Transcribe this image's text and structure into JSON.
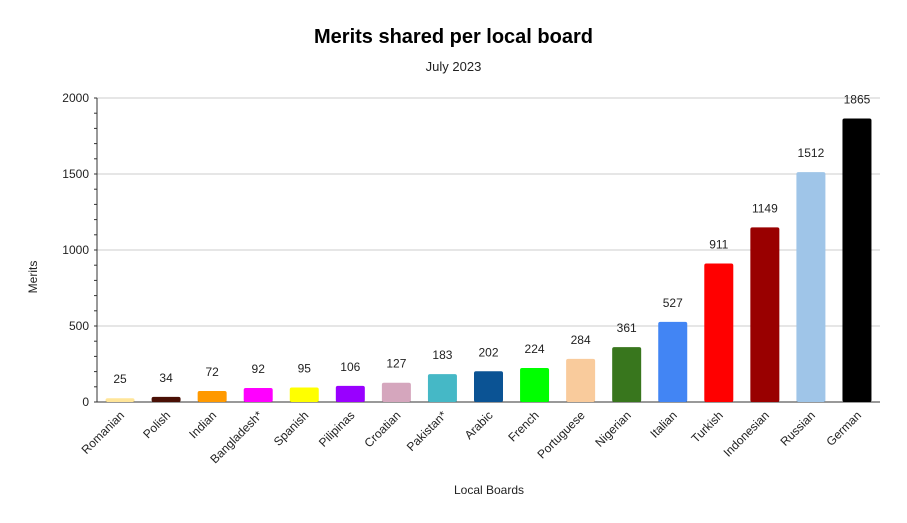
{
  "chart_data": {
    "type": "bar",
    "title": "Merits shared per local board",
    "subtitle": "July 2023",
    "xlabel": "Local Boards",
    "ylabel": "Merits",
    "ylim": [
      0,
      2000
    ],
    "yticks": [
      0,
      500,
      1000,
      1500,
      2000
    ],
    "grid": true,
    "categories": [
      "Romanian",
      "Polish",
      "Indian",
      "Bangladesh*",
      "Spanish",
      "Pilipinas",
      "Croatian",
      "Pakistan*",
      "Arabic",
      "French",
      "Portuguese",
      "Nigerian",
      "Italian",
      "Turkish",
      "Indonesian",
      "Russian",
      "German"
    ],
    "values": [
      25,
      34,
      72,
      92,
      95,
      106,
      127,
      183,
      202,
      224,
      284,
      361,
      527,
      911,
      1149,
      1512,
      1865
    ],
    "colors": [
      "#ffe599",
      "#4a1005",
      "#ff9900",
      "#ff00ff",
      "#ffff00",
      "#9900ff",
      "#d5a6bd",
      "#45b8c6",
      "#0b5394",
      "#00ff00",
      "#f9cb9c",
      "#38761d",
      "#4285f4",
      "#ff0000",
      "#990000",
      "#9fc5e8",
      "#000000"
    ]
  }
}
